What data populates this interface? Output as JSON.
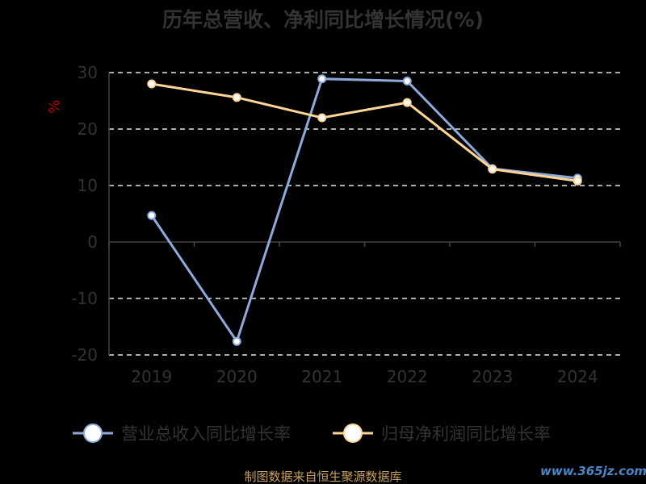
{
  "chart_data": {
    "type": "line",
    "title": "历年总营收、净利同比增长情况(%)",
    "ylabel": "%",
    "categories": [
      "2019",
      "2020",
      "2021",
      "2022",
      "2023",
      "2024"
    ],
    "ylim": [
      -20,
      30
    ],
    "yticks": [
      30,
      20,
      10,
      0,
      -10,
      -20
    ],
    "yticklabels": [
      "30",
      "20",
      "10",
      "0",
      "-10",
      "-20"
    ],
    "grid": true,
    "legend": "bottom",
    "series": [
      {
        "name": "营业总收入同比增长率",
        "color": "#8eaadb",
        "values": [
          4.7,
          -17.6,
          28.9,
          28.5,
          13.0,
          11.3
        ]
      },
      {
        "name": "归母净利润同比增长率",
        "color": "#fdd597",
        "values": [
          28.0,
          25.6,
          22.0,
          24.7,
          12.9,
          10.8
        ]
      }
    ]
  },
  "footer": {
    "source": "制图数据来自恒生聚源数据库",
    "watermark": "www.365jz.com"
  }
}
